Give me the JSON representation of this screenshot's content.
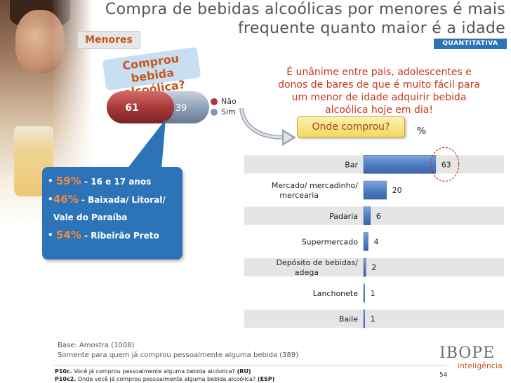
{
  "title": "Compra de bebidas alcoólicas por menores é mais frequente quanto maior é a idade",
  "segment_tab": "Menores",
  "badge": "QUANTITATIVA",
  "question_bubble": "Comprou bebida alcoólica?",
  "comprou": {
    "nao_value": "61",
    "sim_value": "39",
    "nao_pct": 61,
    "sim_pct": 39,
    "legend": [
      {
        "label": "Não",
        "color": "#a83a3a"
      },
      {
        "label": "Sim",
        "color": "#7f97b3"
      }
    ]
  },
  "highlights": [
    {
      "pct": "59%",
      "text": " - 16 e 17 anos"
    },
    {
      "pct": "46%",
      "text": " - Baixada/ Litoral/ Vale do Paraíba"
    },
    {
      "pct": "54%",
      "text": " - Ribeirão Preto"
    }
  ],
  "unanime_text": "É unânime entre pais, adolescentes e donos de bares de que é muito fácil para um menor de idade adquirir bebida alcoólica hoje em dia!",
  "onde_button": "Onde comprou?",
  "pct_symbol": "%",
  "chart_data": {
    "type": "bar",
    "orientation": "horizontal",
    "title": "Onde comprou?",
    "unit": "%",
    "categories": [
      "Bar",
      "Mercado/ mercadinho/ mercearia",
      "Padaria",
      "Supermercado",
      "Depósito de bebidas/ adega",
      "Lanchonete",
      "Baile"
    ],
    "category_lines": [
      [
        "Bar"
      ],
      [
        "Mercado/ mercadinho/",
        "mercearia"
      ],
      [
        "Padaria"
      ],
      [
        "Supermercado"
      ],
      [
        "Depósito de bebidas/",
        "adega"
      ],
      [
        "Lanchonete"
      ],
      [
        "Baile"
      ]
    ],
    "values": [
      63,
      20,
      6,
      4,
      2,
      1,
      1
    ],
    "xlim": [
      0,
      70
    ],
    "highlight": "Bar"
  },
  "base_note": [
    "Base: Amostra (1008)",
    "Somente para quem já comprou pessoalmente alguma bebida (389)"
  ],
  "questions": [
    {
      "code": "P10c.",
      "text": " Você já comprou pessoalmente alguma bebida alcóolica?",
      "tag": " (RU)"
    },
    {
      "code": "P10c2.",
      "text": " Onde você já comprou pessoalmente alguma bebida alcoólica?",
      "tag": " (ESP)"
    }
  ],
  "logo": {
    "brand": "IBOPE",
    "sub": "inteligência"
  },
  "page_number": "54"
}
